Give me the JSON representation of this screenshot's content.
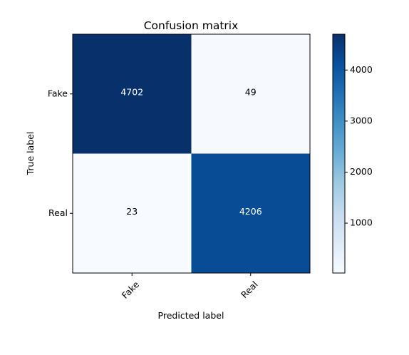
{
  "chart_data": {
    "type": "heatmap",
    "title": "Confusion matrix",
    "xlabel": "Predicted label",
    "ylabel": "True label",
    "x_categories": [
      "Fake",
      "Real"
    ],
    "y_categories": [
      "Fake",
      "Real"
    ],
    "values": [
      [
        4702,
        49
      ],
      [
        23,
        4206
      ]
    ],
    "colormap": "Blues",
    "colorbar": {
      "vmin": 23,
      "vmax": 4702,
      "ticks": [
        1000,
        2000,
        3000,
        4000
      ],
      "tick_labels": [
        "1000",
        "2000",
        "3000",
        "4000"
      ]
    },
    "cell_text_colors": {
      "dark": "#ffffff",
      "light": "#000000"
    },
    "grid": false
  }
}
